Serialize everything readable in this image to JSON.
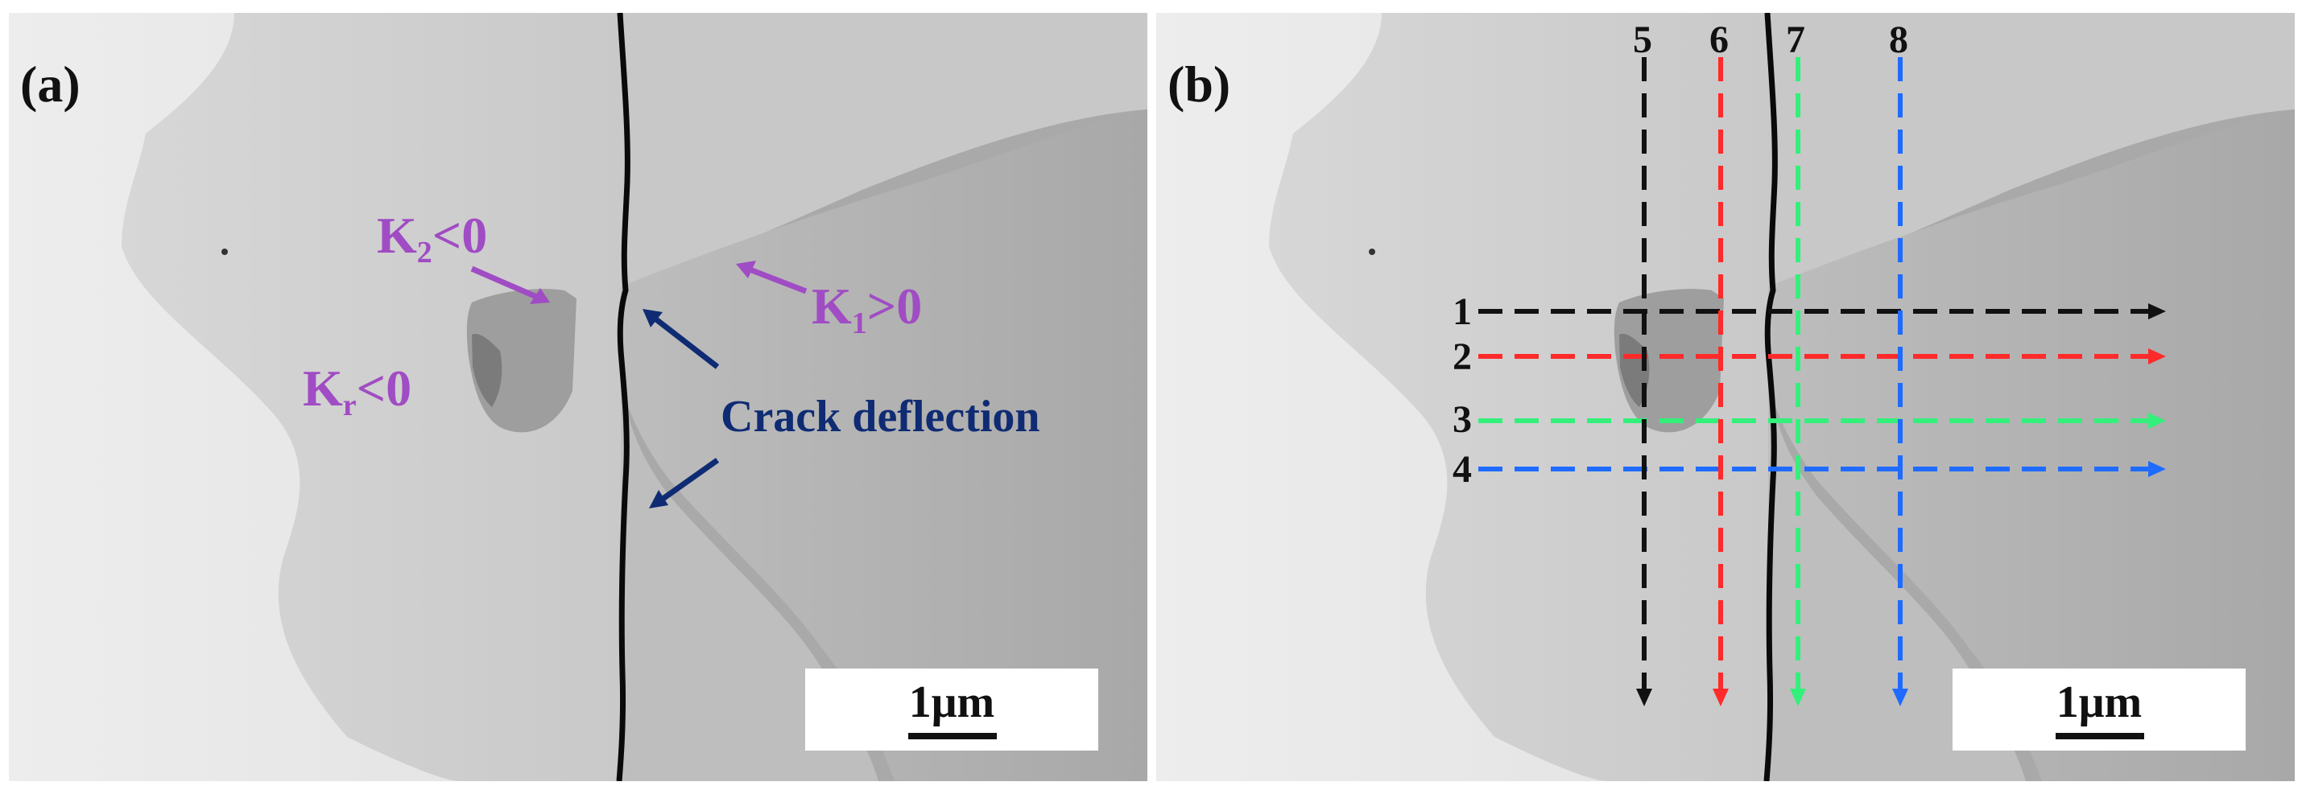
{
  "panel_a": {
    "letter": "(a)",
    "k2_main": "K",
    "k2_sub": "2",
    "k2_rest": "<0",
    "k1_main": "K",
    "k1_sub": "1",
    "k1_rest": ">0",
    "kr_main": "K",
    "kr_sub": "r",
    "kr_rest": "<0",
    "crack_label": "Crack deflection",
    "scale_label": "1μm"
  },
  "panel_b": {
    "letter": "(b)",
    "horizontal_lines": [
      "1",
      "2",
      "3",
      "4"
    ],
    "vertical_lines": [
      "5",
      "6",
      "7",
      "8"
    ],
    "scale_label": "1μm"
  },
  "colors": {
    "annotation_purple": "#a04cc4",
    "annotation_navy": "#0f2b73",
    "line_black": "#111111",
    "line_red": "#ff2a2a",
    "line_green": "#33f07a",
    "line_blue": "#1f6bff"
  }
}
